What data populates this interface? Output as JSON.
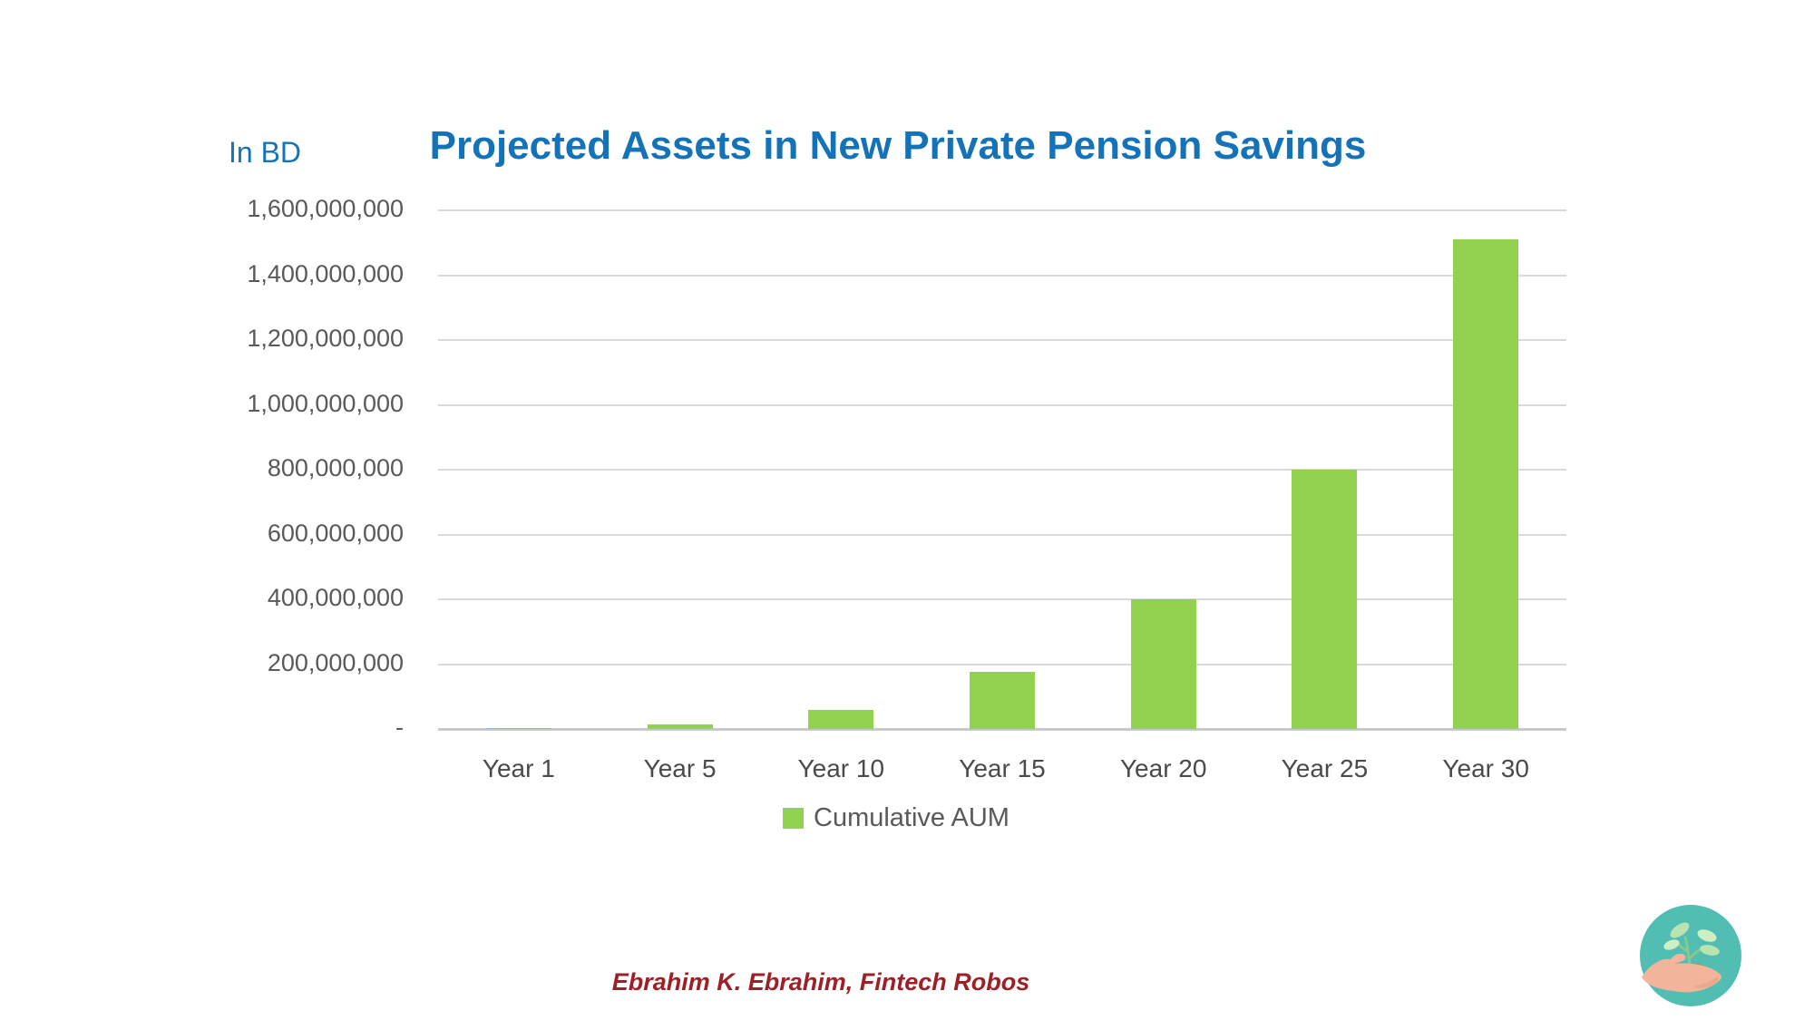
{
  "header": {
    "units_label": "In BD",
    "title": "Projected Assets in New Private Pension Savings"
  },
  "chart_data": {
    "type": "bar",
    "title": "Projected Assets in New Private Pension Savings",
    "units_note": "In BD",
    "categories": [
      "Year 1",
      "Year 5",
      "Year 10",
      "Year 15",
      "Year 20",
      "Year 25",
      "Year 30"
    ],
    "series": [
      {
        "name": "Cumulative AUM",
        "values": [
          2000000,
          13000000,
          60000000,
          175000000,
          400000000,
          800000000,
          1510000000
        ]
      }
    ],
    "xlabel": "",
    "ylabel": "",
    "ylim": [
      0,
      1600000000
    ],
    "ytick_step": 200000000,
    "ytick_labels_bottom_up": [
      "-",
      "200,000,000",
      "400,000,000",
      "600,000,000",
      "800,000,000",
      "1,000,000,000",
      "1,200,000,000",
      "1,400,000,000",
      "1,600,000,000"
    ],
    "grid": true,
    "legend_position": "bottom",
    "bar_color": "#92D050"
  },
  "legend": {
    "label": "Cumulative AUM",
    "swatch_color": "#92D050"
  },
  "footer": {
    "credit": "Ebrahim K. Ebrahim, Fintech Robos"
  },
  "logo": {
    "name": "hand-holding-plant",
    "circle_color": "#52BDB3",
    "hand_color": "#F2B49B",
    "soil_color": "#BD8050",
    "leaf_color": "#B9E4AF",
    "stem_color": "#85C98C"
  },
  "colors": {
    "title_blue": "#1473B8",
    "axis_gray": "#595959",
    "gridline_gray": "#D9D9D9",
    "footer_red": "#9E2026"
  }
}
